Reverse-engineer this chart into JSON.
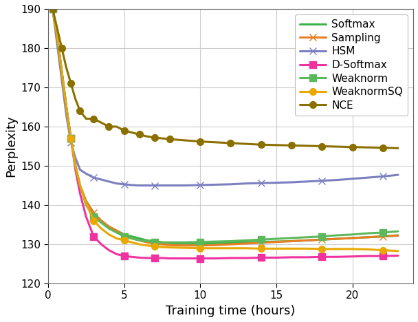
{
  "title": "",
  "xlabel": "Training time (hours)",
  "ylabel": "Perplexity",
  "xlim": [
    0,
    24
  ],
  "ylim": [
    120,
    190
  ],
  "xticks": [
    0,
    5,
    10,
    15,
    20
  ],
  "yticks": [
    120,
    130,
    140,
    150,
    160,
    170,
    180,
    190
  ],
  "series": {
    "Softmax": {
      "color": "#3cb34a",
      "marker": null,
      "markersize": 0,
      "linewidth": 2.2,
      "x": [
        0.3,
        0.6,
        0.9,
        1.2,
        1.5,
        1.8,
        2.1,
        2.5,
        3.0,
        3.5,
        4.0,
        4.5,
        5.0,
        5.5,
        6.0,
        6.5,
        7.0,
        7.5,
        8.0,
        9.0,
        10.0,
        11.0,
        12.0,
        13.0,
        14.0,
        15.0,
        16.0,
        17.0,
        18.0,
        19.0,
        20.0,
        21.0,
        22.0,
        23.0
      ],
      "y": [
        190,
        183,
        174,
        165,
        157,
        150,
        145,
        141,
        138,
        136,
        134.5,
        133.5,
        132.5,
        132,
        131.5,
        131,
        130.8,
        130.5,
        130.3,
        130.2,
        130.2,
        130.3,
        130.4,
        130.5,
        130.6,
        130.7,
        130.8,
        131.0,
        131.2,
        131.4,
        131.6,
        131.8,
        132.0,
        132.3
      ]
    },
    "Sampling": {
      "color": "#e87d22",
      "marker": "x",
      "markersize": 7,
      "markevery": 4,
      "linewidth": 2.2,
      "x": [
        0.3,
        0.6,
        0.9,
        1.2,
        1.5,
        1.8,
        2.1,
        2.5,
        3.0,
        3.5,
        4.0,
        4.5,
        5.0,
        5.5,
        6.0,
        6.5,
        7.0,
        7.5,
        8.0,
        9.0,
        10.0,
        11.0,
        12.0,
        13.0,
        14.0,
        15.0,
        16.0,
        17.0,
        18.0,
        19.0,
        20.0,
        21.0,
        22.0,
        23.0
      ],
      "y": [
        190,
        183,
        174,
        165,
        157,
        150,
        145,
        141,
        138,
        136,
        134.5,
        133.5,
        132,
        131.5,
        131,
        130.5,
        130.2,
        130,
        129.8,
        129.7,
        129.7,
        129.8,
        130.0,
        130.2,
        130.4,
        130.6,
        130.8,
        131.0,
        131.2,
        131.4,
        131.6,
        131.8,
        132.0,
        132.2
      ]
    },
    "HSM": {
      "color": "#7b7fbf",
      "marker": "x",
      "markersize": 7,
      "markevery": 4,
      "linewidth": 2.2,
      "x": [
        0.3,
        0.6,
        0.9,
        1.2,
        1.5,
        1.8,
        2.1,
        2.5,
        3.0,
        3.5,
        4.0,
        4.5,
        5.0,
        5.5,
        6.0,
        6.5,
        7.0,
        7.5,
        8.0,
        9.0,
        10.0,
        11.0,
        12.0,
        13.0,
        14.0,
        15.0,
        16.0,
        17.0,
        18.0,
        19.0,
        20.0,
        21.0,
        22.0,
        23.0
      ],
      "y": [
        190,
        181,
        172,
        163,
        156,
        152,
        149,
        148,
        147,
        146.5,
        146,
        145.5,
        145.3,
        145.1,
        145.0,
        145.0,
        145.0,
        145.0,
        145.0,
        145.0,
        145.1,
        145.2,
        145.3,
        145.5,
        145.6,
        145.7,
        145.8,
        146.0,
        146.2,
        146.4,
        146.7,
        147.0,
        147.3,
        147.7
      ]
    },
    "D-Softmax": {
      "color": "#f032a0",
      "marker": "s",
      "markersize": 7,
      "markevery": 4,
      "linewidth": 2.2,
      "x": [
        0.3,
        0.6,
        0.9,
        1.2,
        1.5,
        1.8,
        2.1,
        2.5,
        3.0,
        3.5,
        4.0,
        4.5,
        5.0,
        5.5,
        6.0,
        6.5,
        7.0,
        7.5,
        8.0,
        9.0,
        10.0,
        11.0,
        12.0,
        13.0,
        14.0,
        15.0,
        16.0,
        17.0,
        18.0,
        19.0,
        20.0,
        21.0,
        22.0,
        23.0
      ],
      "y": [
        190,
        183,
        174,
        165,
        157,
        149,
        143,
        137,
        132,
        130,
        128.5,
        127.5,
        127,
        126.8,
        126.6,
        126.5,
        126.5,
        126.5,
        126.4,
        126.4,
        126.4,
        126.4,
        126.5,
        126.5,
        126.6,
        126.6,
        126.7,
        126.7,
        126.8,
        126.8,
        126.9,
        127.0,
        127.0,
        127.1
      ]
    },
    "Weaknorm": {
      "color": "#5cb85c",
      "marker": "s",
      "markersize": 7,
      "markevery": 4,
      "linewidth": 2.2,
      "x": [
        0.3,
        0.6,
        0.9,
        1.2,
        1.5,
        1.8,
        2.1,
        2.5,
        3.0,
        3.5,
        4.0,
        4.5,
        5.0,
        5.5,
        6.0,
        6.5,
        7.0,
        7.5,
        8.0,
        9.0,
        10.0,
        11.0,
        12.0,
        13.0,
        14.0,
        15.0,
        16.0,
        17.0,
        18.0,
        19.0,
        20.0,
        21.0,
        22.0,
        23.0
      ],
      "y": [
        190,
        183,
        174,
        165,
        157,
        150,
        145,
        140,
        137,
        135.5,
        134,
        133,
        132,
        131.5,
        131,
        130.8,
        130.6,
        130.5,
        130.5,
        130.5,
        130.6,
        130.7,
        130.8,
        131.0,
        131.2,
        131.4,
        131.6,
        131.8,
        132.0,
        132.3,
        132.5,
        132.8,
        133.0,
        133.3
      ]
    },
    "WeaknormSQ": {
      "color": "#e8a800",
      "marker": "o",
      "markersize": 7,
      "markevery": 4,
      "linewidth": 2.2,
      "x": [
        0.3,
        0.6,
        0.9,
        1.2,
        1.5,
        1.8,
        2.1,
        2.5,
        3.0,
        3.5,
        4.0,
        4.5,
        5.0,
        5.5,
        6.0,
        6.5,
        7.0,
        7.5,
        8.0,
        9.0,
        10.0,
        11.0,
        12.0,
        13.0,
        14.0,
        15.0,
        16.0,
        17.0,
        18.0,
        19.0,
        20.0,
        21.0,
        22.0,
        23.0
      ],
      "y": [
        190,
        183,
        174,
        165,
        157,
        150,
        145,
        140.5,
        136,
        134,
        132.5,
        131.5,
        131,
        130.5,
        130,
        129.7,
        129.5,
        129.3,
        129.2,
        129.1,
        129.0,
        129.0,
        129.0,
        129.0,
        128.9,
        128.9,
        128.9,
        128.9,
        128.8,
        128.8,
        128.8,
        128.7,
        128.5,
        128.3
      ]
    },
    "NCE": {
      "color": "#8b7000",
      "marker": "o",
      "markersize": 7,
      "markevery": 2,
      "linewidth": 2.2,
      "x": [
        0.3,
        0.6,
        0.9,
        1.2,
        1.5,
        1.8,
        2.1,
        2.5,
        3.0,
        3.5,
        4.0,
        4.5,
        5.0,
        5.5,
        6.0,
        6.5,
        7.0,
        7.5,
        8.0,
        9.0,
        10.0,
        11.0,
        12.0,
        13.0,
        14.0,
        15.0,
        16.0,
        17.0,
        18.0,
        19.0,
        20.0,
        21.0,
        22.0,
        23.0
      ],
      "y": [
        190,
        185,
        180,
        175,
        171,
        167,
        164,
        162,
        162,
        161,
        160,
        160,
        159,
        158.5,
        158,
        157.5,
        157.2,
        157,
        156.8,
        156.5,
        156.2,
        156.0,
        155.8,
        155.6,
        155.4,
        155.3,
        155.2,
        155.1,
        155.0,
        154.9,
        154.8,
        154.7,
        154.6,
        154.5
      ]
    }
  },
  "legend_order": [
    "Softmax",
    "Sampling",
    "HSM",
    "D-Softmax",
    "Weaknorm",
    "WeaknormSQ",
    "NCE"
  ],
  "grid_color": "#cccccc",
  "font_family": "DejaVu Sans"
}
